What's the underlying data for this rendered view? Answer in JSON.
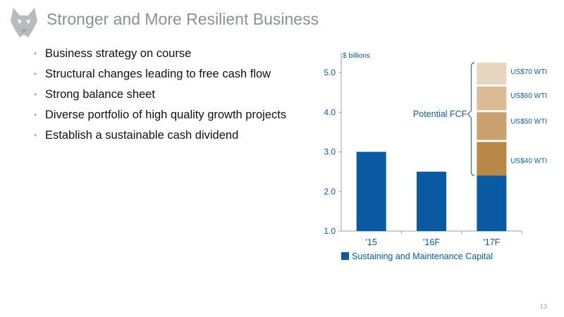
{
  "slide": {
    "title": "Stronger and More Resilient Business",
    "page_number": "13",
    "bullets": [
      "Business strategy on course",
      "Structural changes leading to free cash flow",
      "Strong balance sheet",
      "Diverse portfolio of high quality growth projects",
      "Establish a sustainable cash dividend"
    ]
  },
  "chart_data": {
    "type": "bar",
    "unit_label": "$ billions",
    "categories": [
      "'15",
      "'16F",
      "'17F"
    ],
    "ylim": [
      1.0,
      5.5
    ],
    "yticks": [
      "1.0",
      "2.0",
      "3.0",
      "4.0",
      "5.0"
    ],
    "grid": false,
    "series": [
      {
        "name": "Sustaining and Maintenance Capital",
        "color": "#0a5aa3",
        "values": [
          3.0,
          2.5,
          2.4
        ]
      }
    ],
    "fcf_segments": [
      {
        "label": "US$40 WTI",
        "from": 2.4,
        "to": 3.25,
        "color": "#b98848"
      },
      {
        "label": "US$50 WTI",
        "from": 3.3,
        "to": 4.0,
        "color": "#caa06f"
      },
      {
        "label": "US$60 WTI",
        "from": 4.05,
        "to": 4.65,
        "color": "#dbbb94"
      },
      {
        "label": "US$70 WTI",
        "from": 4.7,
        "to": 5.25,
        "color": "#e9d6c0"
      }
    ],
    "fcf_label": "Potential FCF",
    "legend": {
      "position": "bottom",
      "label": "Sustaining and Maintenance Capital"
    },
    "colors": {
      "axis": "#9aa0a6",
      "text": "#0a5aa3"
    }
  }
}
